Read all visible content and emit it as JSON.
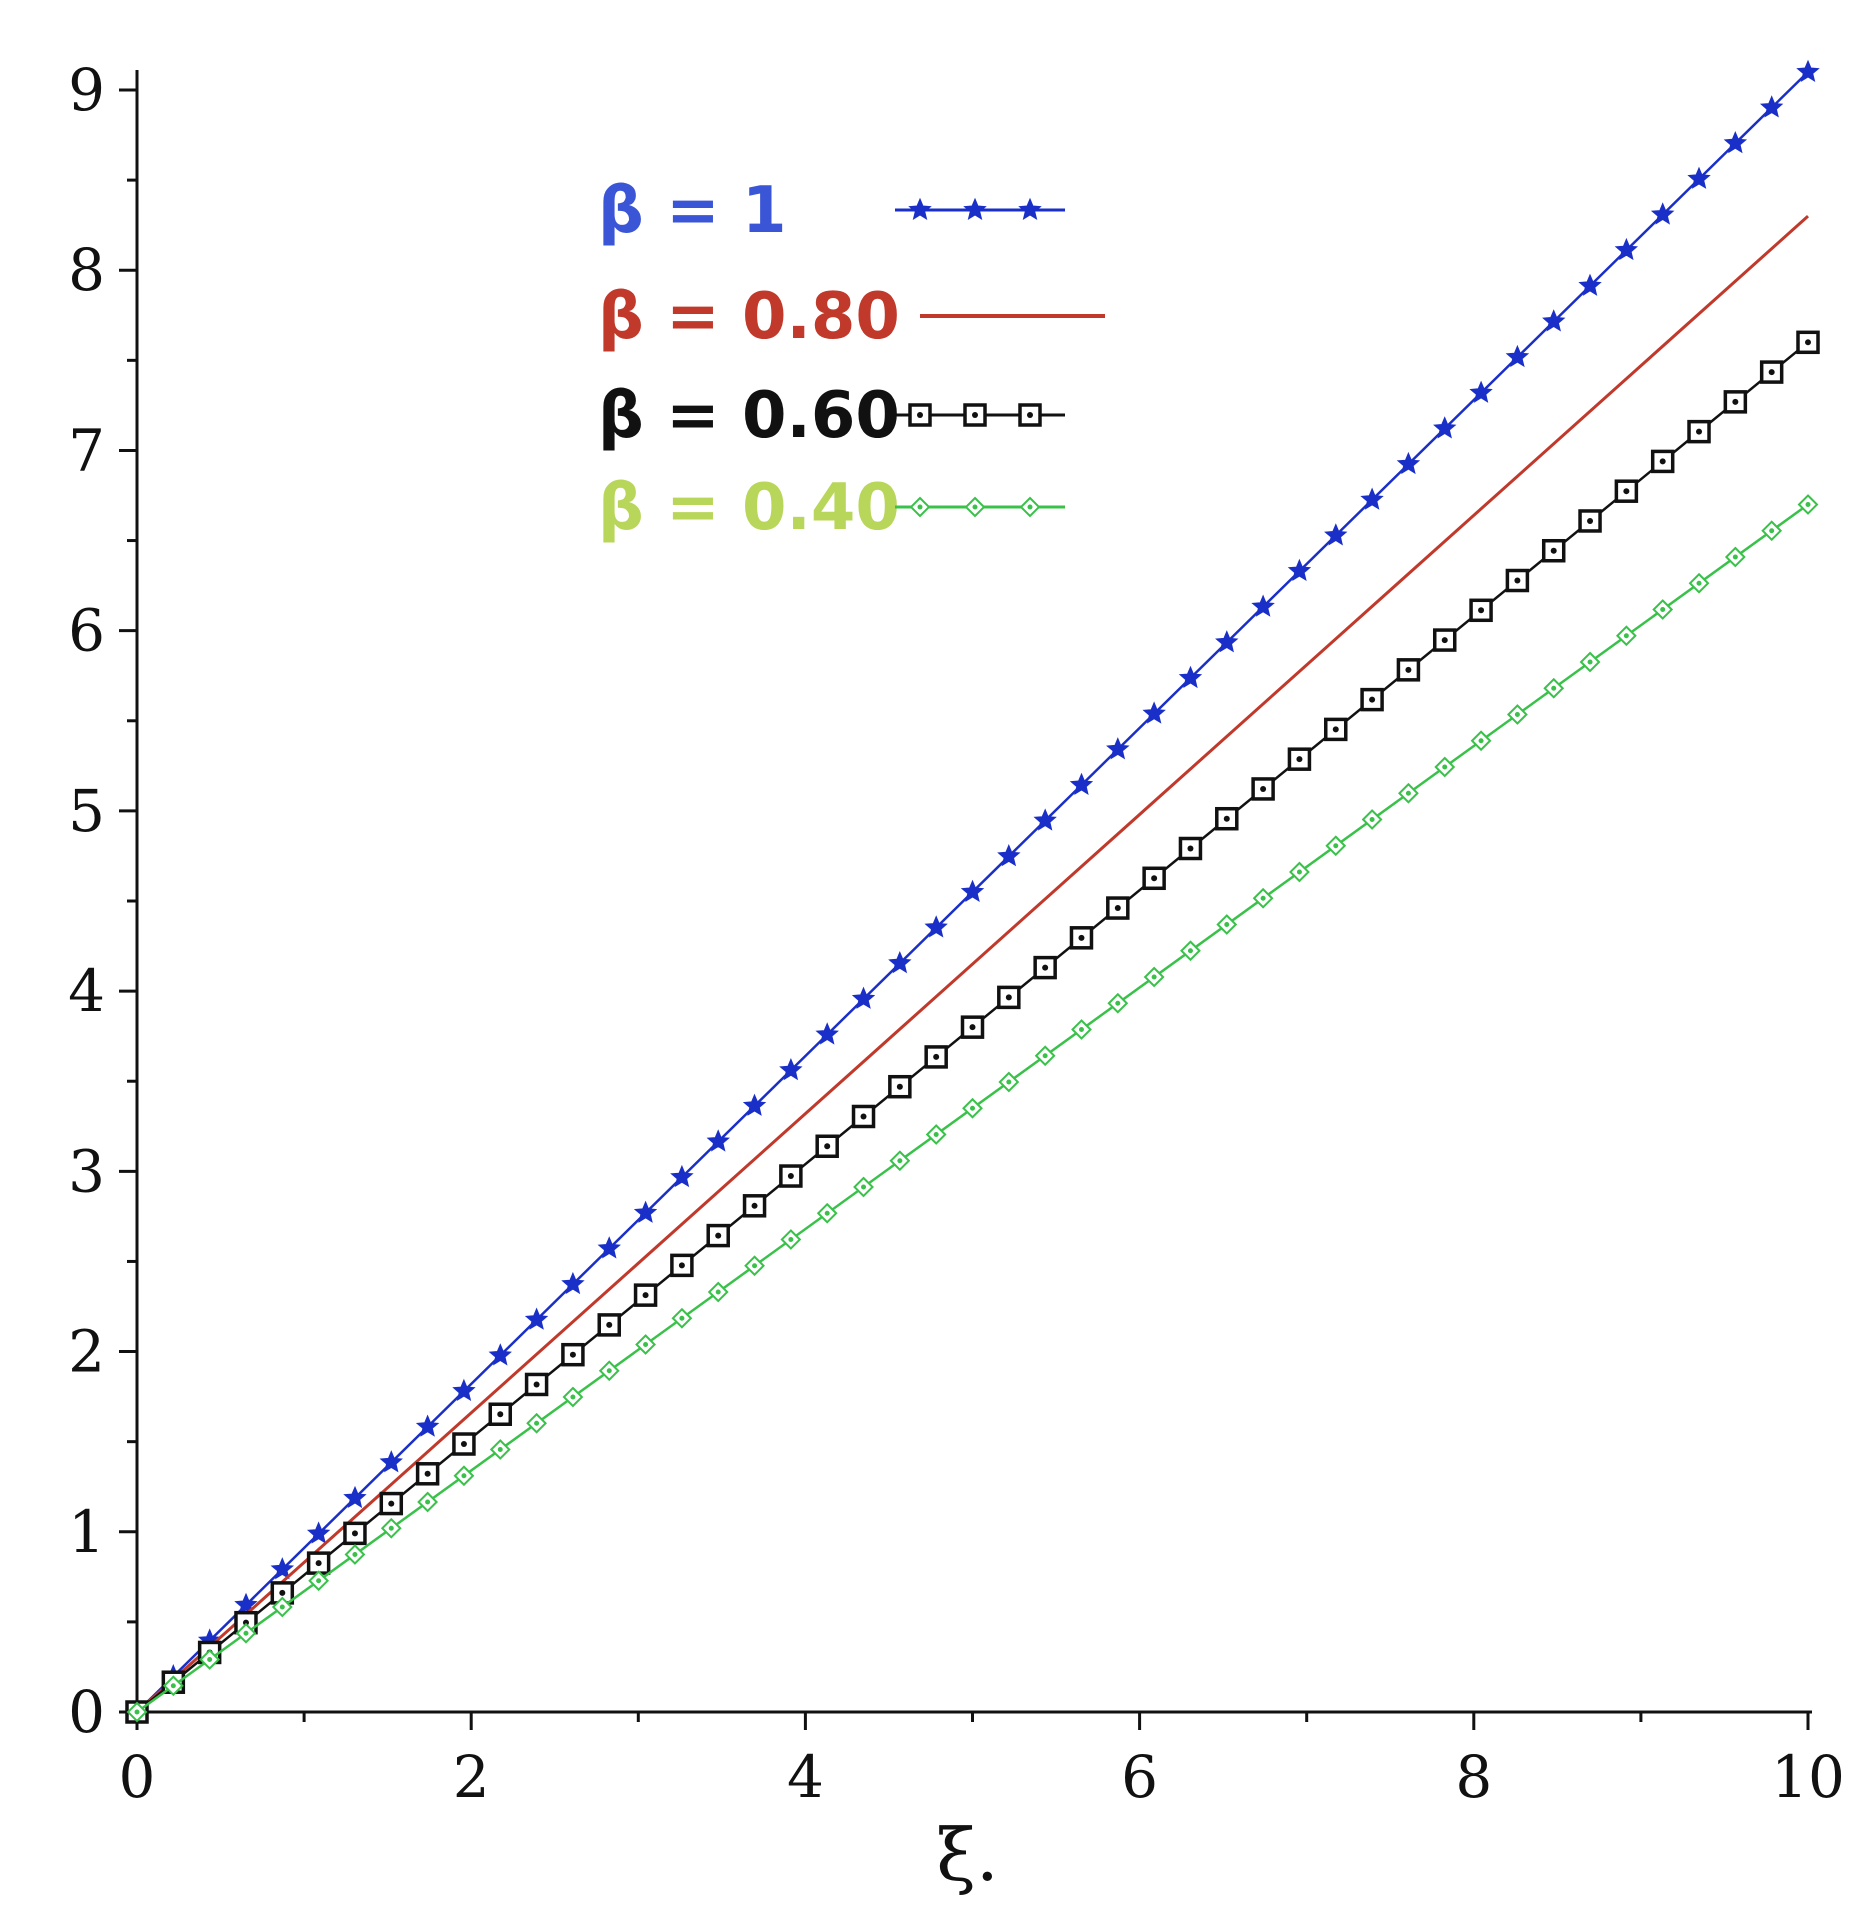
{
  "chart_data": {
    "type": "line",
    "xlabel": "ξ.",
    "ylabel": "",
    "xlim": [
      0,
      10
    ],
    "ylim": [
      0,
      9
    ],
    "x_ticks": [
      "0",
      "2",
      "4",
      "6",
      "8",
      "10"
    ],
    "y_ticks": [
      "0",
      "1",
      "2",
      "3",
      "4",
      "5",
      "6",
      "7",
      "8",
      "9"
    ],
    "grid": false,
    "legend_position": "top-left",
    "series": [
      {
        "name": "β = 1",
        "color": "#1a2fc8",
        "marker": "star",
        "slope": 0.91,
        "x_end": 10,
        "y_end": 9.1,
        "marker_count": 46
      },
      {
        "name": "β = 0.80",
        "color": "#c0392b",
        "marker": "none",
        "slope": 0.83,
        "x_end": 10,
        "y_end": 8.3,
        "marker_count": 0
      },
      {
        "name": "β = 0.60",
        "color": "#111111",
        "marker": "square",
        "slope": 0.76,
        "x_end": 10,
        "y_end": 7.6,
        "marker_count": 46
      },
      {
        "name": "β = 0.40",
        "color": "#39c14a",
        "marker": "diamond",
        "slope": 0.67,
        "x_end": 10,
        "y_end": 6.7,
        "marker_count": 46
      }
    ],
    "legend_text_colors": [
      "#3a55d6",
      "#c0392b",
      "#111111",
      "#b8d65a"
    ]
  }
}
